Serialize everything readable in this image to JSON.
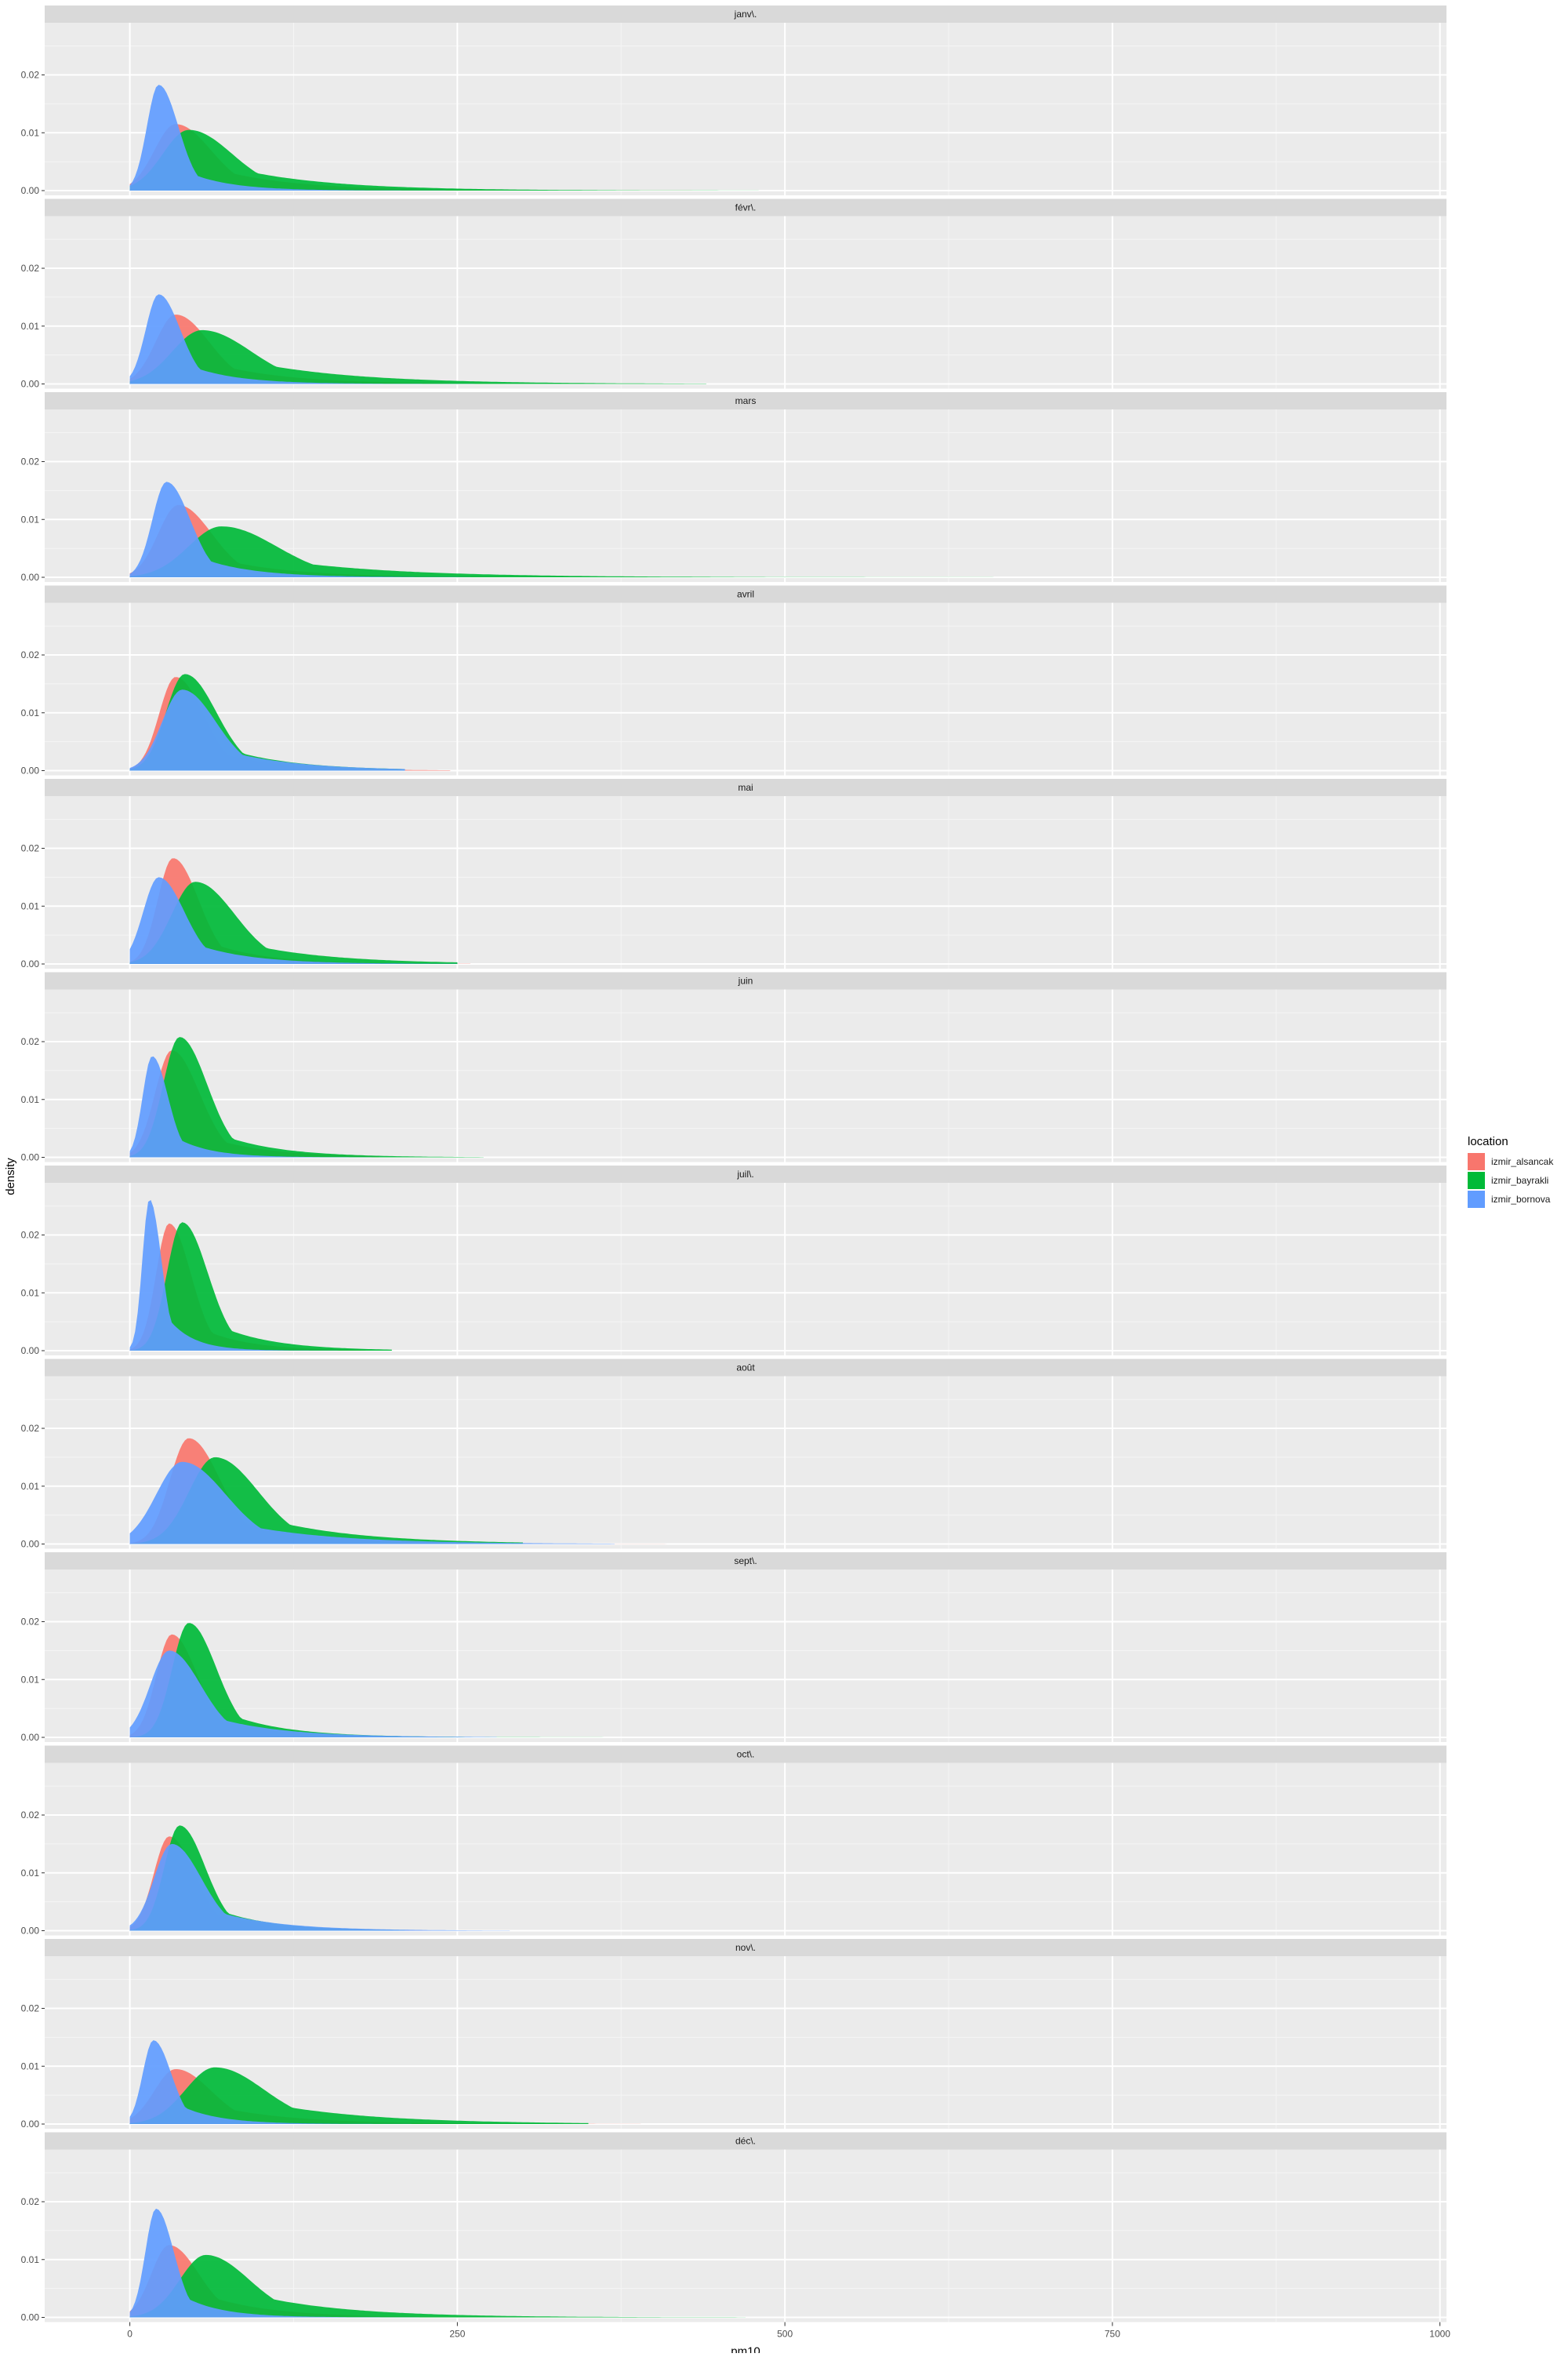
{
  "chart_data": {
    "type": "area",
    "subtype": "density",
    "xlabel": "pm10",
    "ylabel": "density",
    "xlim": [
      0,
      1000
    ],
    "ylim": [
      0,
      0.026
    ],
    "x_ticks": [
      "0",
      "250",
      "500",
      "750",
      "1000"
    ],
    "x_tick_values": [
      0,
      250,
      500,
      750,
      1000
    ],
    "y_ticks": [
      "0.00",
      "0.01",
      "0.02"
    ],
    "y_tick_values": [
      0,
      0.01,
      0.02
    ],
    "grid": true,
    "legend": {
      "title": "location",
      "placement": "right",
      "entries": [
        "izmir_alsancak",
        "izmir_bayrakli",
        "izmir_bornova"
      ]
    },
    "colors": {
      "izmir_alsancak": "#F8766D",
      "izmir_bayrakli": "#00BA38",
      "izmir_bornova": "#619CFF",
      "panel_bg": "#EBEBEB",
      "strip_bg": "#D9D9D9"
    },
    "facets": [
      {
        "label": "janv\\.",
        "series": [
          {
            "name": "izmir_alsancak",
            "peak_x": 35,
            "peak_y": 0.0115,
            "spread": 18,
            "tail": 0.55,
            "max_x": 600
          },
          {
            "name": "izmir_bayrakli",
            "peak_x": 45,
            "peak_y": 0.0105,
            "spread": 22,
            "tail": 0.6,
            "max_x": 480
          },
          {
            "name": "izmir_bornova",
            "peak_x": 22,
            "peak_y": 0.0183,
            "spread": 10,
            "tail": 0.35,
            "max_x": 520
          }
        ]
      },
      {
        "label": "févr\\.",
        "series": [
          {
            "name": "izmir_alsancak",
            "peak_x": 35,
            "peak_y": 0.012,
            "spread": 17,
            "tail": 0.5,
            "max_x": 600
          },
          {
            "name": "izmir_bayrakli",
            "peak_x": 55,
            "peak_y": 0.0093,
            "spread": 25,
            "tail": 0.65,
            "max_x": 440
          },
          {
            "name": "izmir_bornova",
            "peak_x": 22,
            "peak_y": 0.0155,
            "spread": 11,
            "tail": 0.4,
            "max_x": 350
          }
        ]
      },
      {
        "label": "mars",
        "series": [
          {
            "name": "izmir_alsancak",
            "peak_x": 37,
            "peak_y": 0.0125,
            "spread": 17,
            "tail": 0.45,
            "max_x": 530
          },
          {
            "name": "izmir_bayrakli",
            "peak_x": 70,
            "peak_y": 0.0088,
            "spread": 28,
            "tail": 0.55,
            "max_x": 670
          },
          {
            "name": "izmir_bornova",
            "peak_x": 28,
            "peak_y": 0.0165,
            "spread": 12,
            "tail": 0.4,
            "max_x": 260
          }
        ]
      },
      {
        "label": "avril",
        "series": [
          {
            "name": "izmir_alsancak",
            "peak_x": 35,
            "peak_y": 0.0162,
            "spread": 14,
            "tail": 0.4,
            "max_x": 245
          },
          {
            "name": "izmir_bayrakli",
            "peak_x": 42,
            "peak_y": 0.0167,
            "spread": 16,
            "tail": 0.42,
            "max_x": 210
          },
          {
            "name": "izmir_bornova",
            "peak_x": 40,
            "peak_y": 0.014,
            "spread": 17,
            "tail": 0.45,
            "max_x": 210
          }
        ]
      },
      {
        "label": "mai",
        "series": [
          {
            "name": "izmir_alsancak",
            "peak_x": 33,
            "peak_y": 0.0183,
            "spread": 13,
            "tail": 0.4,
            "max_x": 260
          },
          {
            "name": "izmir_bayrakli",
            "peak_x": 50,
            "peak_y": 0.0142,
            "spread": 20,
            "tail": 0.45,
            "max_x": 250
          },
          {
            "name": "izmir_bornova",
            "peak_x": 22,
            "peak_y": 0.015,
            "spread": 13,
            "tail": 0.45,
            "max_x": 250
          }
        ]
      },
      {
        "label": "juin",
        "series": [
          {
            "name": "izmir_alsancak",
            "peak_x": 32,
            "peak_y": 0.0185,
            "spread": 14,
            "tail": 0.35,
            "max_x": 190
          },
          {
            "name": "izmir_bayrakli",
            "peak_x": 38,
            "peak_y": 0.0208,
            "spread": 14,
            "tail": 0.38,
            "max_x": 270
          },
          {
            "name": "izmir_bornova",
            "peak_x": 17,
            "peak_y": 0.0175,
            "spread": 8,
            "tail": 0.4,
            "max_x": 185
          }
        ]
      },
      {
        "label": "juil\\.",
        "series": [
          {
            "name": "izmir_alsancak",
            "peak_x": 30,
            "peak_y": 0.022,
            "spread": 11,
            "tail": 0.35,
            "max_x": 180
          },
          {
            "name": "izmir_bayrakli",
            "peak_x": 40,
            "peak_y": 0.0222,
            "spread": 13,
            "tail": 0.38,
            "max_x": 200
          },
          {
            "name": "izmir_bornova",
            "peak_x": 15,
            "peak_y": 0.0262,
            "spread": 6,
            "tail": 0.45,
            "max_x": 170
          }
        ]
      },
      {
        "label": "août",
        "series": [
          {
            "name": "izmir_alsancak",
            "peak_x": 45,
            "peak_y": 0.0183,
            "spread": 16,
            "tail": 0.45,
            "max_x": 680
          },
          {
            "name": "izmir_bayrakli",
            "peak_x": 65,
            "peak_y": 0.015,
            "spread": 22,
            "tail": 0.5,
            "max_x": 300
          },
          {
            "name": "izmir_bornova",
            "peak_x": 40,
            "peak_y": 0.0142,
            "spread": 22,
            "tail": 0.45,
            "max_x": 370
          }
        ]
      },
      {
        "label": "sept\\.",
        "series": [
          {
            "name": "izmir_alsancak",
            "peak_x": 32,
            "peak_y": 0.0178,
            "spread": 13,
            "tail": 0.4,
            "max_x": 250
          },
          {
            "name": "izmir_bayrakli",
            "peak_x": 45,
            "peak_y": 0.0198,
            "spread": 14,
            "tail": 0.4,
            "max_x": 400
          },
          {
            "name": "izmir_bornova",
            "peak_x": 30,
            "peak_y": 0.015,
            "spread": 16,
            "tail": 0.45,
            "max_x": 280
          }
        ]
      },
      {
        "label": "oct\\.",
        "series": [
          {
            "name": "izmir_alsancak",
            "peak_x": 30,
            "peak_y": 0.0163,
            "spread": 13,
            "tail": 0.4,
            "max_x": 230
          },
          {
            "name": "izmir_bayrakli",
            "peak_x": 38,
            "peak_y": 0.0182,
            "spread": 13,
            "tail": 0.4,
            "max_x": 210
          },
          {
            "name": "izmir_bornova",
            "peak_x": 32,
            "peak_y": 0.015,
            "spread": 15,
            "tail": 0.45,
            "max_x": 290
          }
        ]
      },
      {
        "label": "nov\\.",
        "series": [
          {
            "name": "izmir_alsancak",
            "peak_x": 35,
            "peak_y": 0.0095,
            "spread": 18,
            "tail": 0.55,
            "max_x": 390
          },
          {
            "name": "izmir_bayrakli",
            "peak_x": 65,
            "peak_y": 0.0098,
            "spread": 25,
            "tail": 0.6,
            "max_x": 350
          },
          {
            "name": "izmir_bornova",
            "peak_x": 18,
            "peak_y": 0.0145,
            "spread": 9,
            "tail": 0.45,
            "max_x": 300
          }
        ]
      },
      {
        "label": "déc\\.",
        "series": [
          {
            "name": "izmir_alsancak",
            "peak_x": 30,
            "peak_y": 0.0125,
            "spread": 15,
            "tail": 0.55,
            "max_x": 470
          },
          {
            "name": "izmir_bayrakli",
            "peak_x": 58,
            "peak_y": 0.0108,
            "spread": 22,
            "tail": 0.6,
            "max_x": 470
          },
          {
            "name": "izmir_bornova",
            "peak_x": 20,
            "peak_y": 0.0188,
            "spread": 9,
            "tail": 0.4,
            "max_x": 340
          }
        ]
      }
    ]
  }
}
